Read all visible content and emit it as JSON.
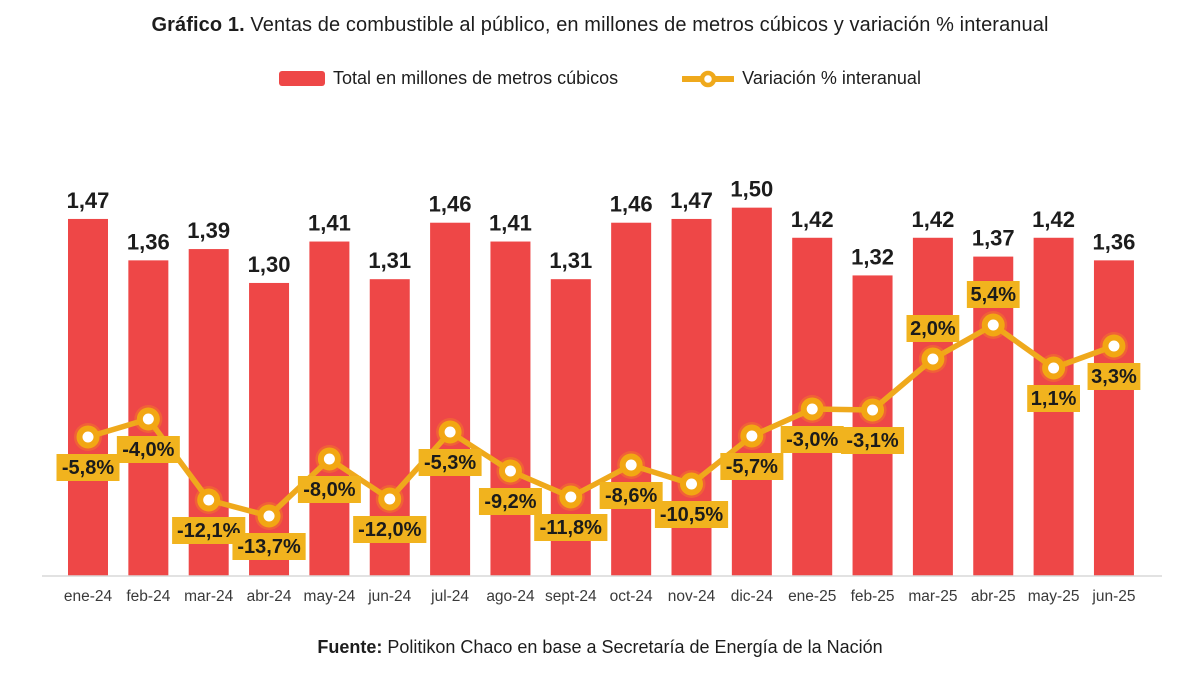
{
  "title": {
    "prefix": "Gráfico 1.",
    "rest": " Ventas de combustible al público, en millones de metros cúbicos y variación % interanual"
  },
  "legend": {
    "bar_label": "Total en millones de metros cúbicos",
    "line_label": "Variación % interanual"
  },
  "footer": {
    "prefix": "Fuente:",
    "rest": " Politikon Chaco en base a Secretaría de Energía de la Nación"
  },
  "colors": {
    "bar": "#ee4747",
    "line": "#efa91c",
    "marker_ring": "#f2a713",
    "marker_halo": "#f59e15",
    "marker_center": "#ffffff",
    "badge_bg": "#f1b31e",
    "badge_text": "#1b1b1b",
    "value_label": "#1c1c1c",
    "axis_label": "#3a3a3a",
    "baseline": "#d9d9d9"
  },
  "chart_data": {
    "type": "bar",
    "subtype": "bar+line combo",
    "title": "Ventas de combustible al público, en millones de metros cúbicos y variación % interanual",
    "xlabel": "",
    "ylabel": "",
    "grid": false,
    "legend_position": "top",
    "axes_hidden": true,
    "categories": [
      "ene-24",
      "feb-24",
      "mar-24",
      "abr-24",
      "may-24",
      "jun-24",
      "jul-24",
      "ago-24",
      "sept-24",
      "oct-24",
      "nov-24",
      "dic-24",
      "ene-25",
      "feb-25",
      "mar-25",
      "abr-25",
      "may-25",
      "jun-25"
    ],
    "series": [
      {
        "name": "Total en millones de metros cúbicos",
        "type": "bar",
        "values": [
          1.47,
          1.36,
          1.39,
          1.3,
          1.41,
          1.31,
          1.46,
          1.41,
          1.31,
          1.46,
          1.47,
          1.5,
          1.42,
          1.32,
          1.42,
          1.37,
          1.42,
          1.36
        ],
        "labels": [
          "1,47",
          "1,36",
          "1,39",
          "1,30",
          "1,41",
          "1,31",
          "1,46",
          "1,41",
          "1,31",
          "1,46",
          "1,47",
          "1,50",
          "1,42",
          "1,32",
          "1,42",
          "1,37",
          "1,42",
          "1,36"
        ]
      },
      {
        "name": "Variación % interanual",
        "type": "line",
        "values": [
          -5.8,
          -4.0,
          -12.1,
          -13.7,
          -8.0,
          -12.0,
          -5.3,
          -9.2,
          -11.8,
          -8.6,
          -10.5,
          -5.7,
          -3.0,
          -3.1,
          2.0,
          5.4,
          1.1,
          3.3
        ],
        "labels": [
          "-5,8%",
          "-4,0%",
          "-12,1%",
          "-13,7%",
          "-8,0%",
          "-12,0%",
          "-5,3%",
          "-9,2%",
          "-11,8%",
          "-8,6%",
          "-10,5%",
          "-5,7%",
          "-3,0%",
          "-3,1%",
          "2,0%",
          "5,4%",
          "1,1%",
          "3,3%"
        ],
        "label_positions": [
          "below",
          "below",
          "below",
          "below",
          "below",
          "below",
          "below",
          "below",
          "below",
          "below",
          "below",
          "below",
          "below",
          "below",
          "above",
          "above",
          "below",
          "below"
        ]
      }
    ]
  }
}
